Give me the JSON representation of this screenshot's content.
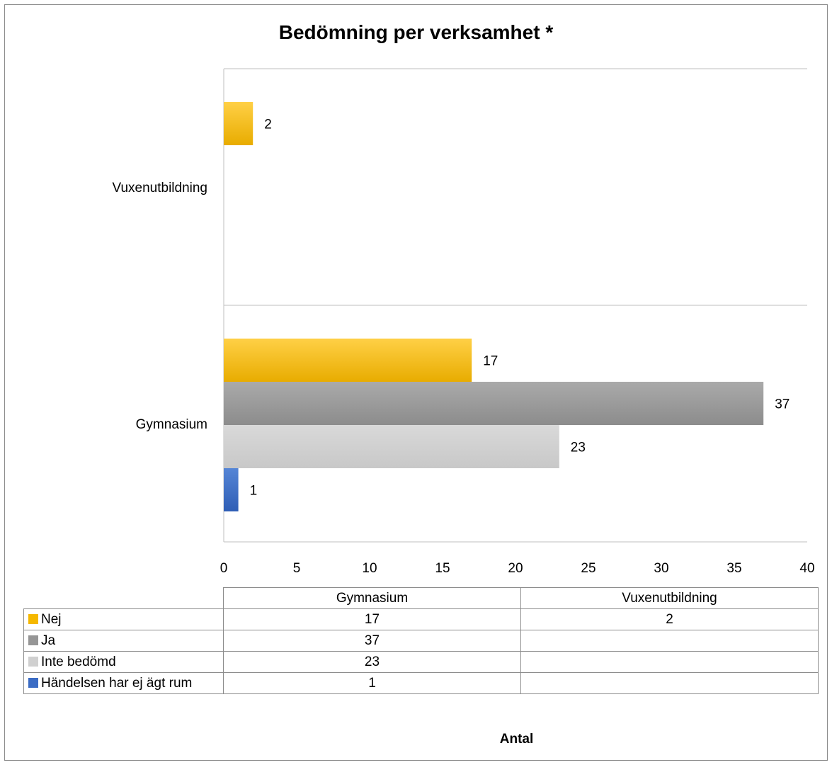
{
  "chart_data": {
    "type": "bar",
    "orientation": "horizontal",
    "title": "Bedömning per verksamhet *",
    "xlabel": "Antal",
    "xlim": [
      0,
      40
    ],
    "x_ticks": [
      0,
      5,
      10,
      15,
      20,
      25,
      30,
      35,
      40
    ],
    "categories": [
      "Gymnasium",
      "Vuxenutbildning"
    ],
    "series": [
      {
        "name": "Nej",
        "values": [
          17,
          2
        ],
        "color": "#f5b800"
      },
      {
        "name": "Ja",
        "values": [
          37,
          null
        ],
        "color": "#969696"
      },
      {
        "name": "Inte bedömd",
        "values": [
          23,
          null
        ],
        "color": "#d0d0d0"
      },
      {
        "name": "Händelsen har ej ägt rum",
        "values": [
          1,
          null
        ],
        "color": "#3b6cc4"
      }
    ],
    "grid": true,
    "legend": "data table below chart"
  }
}
